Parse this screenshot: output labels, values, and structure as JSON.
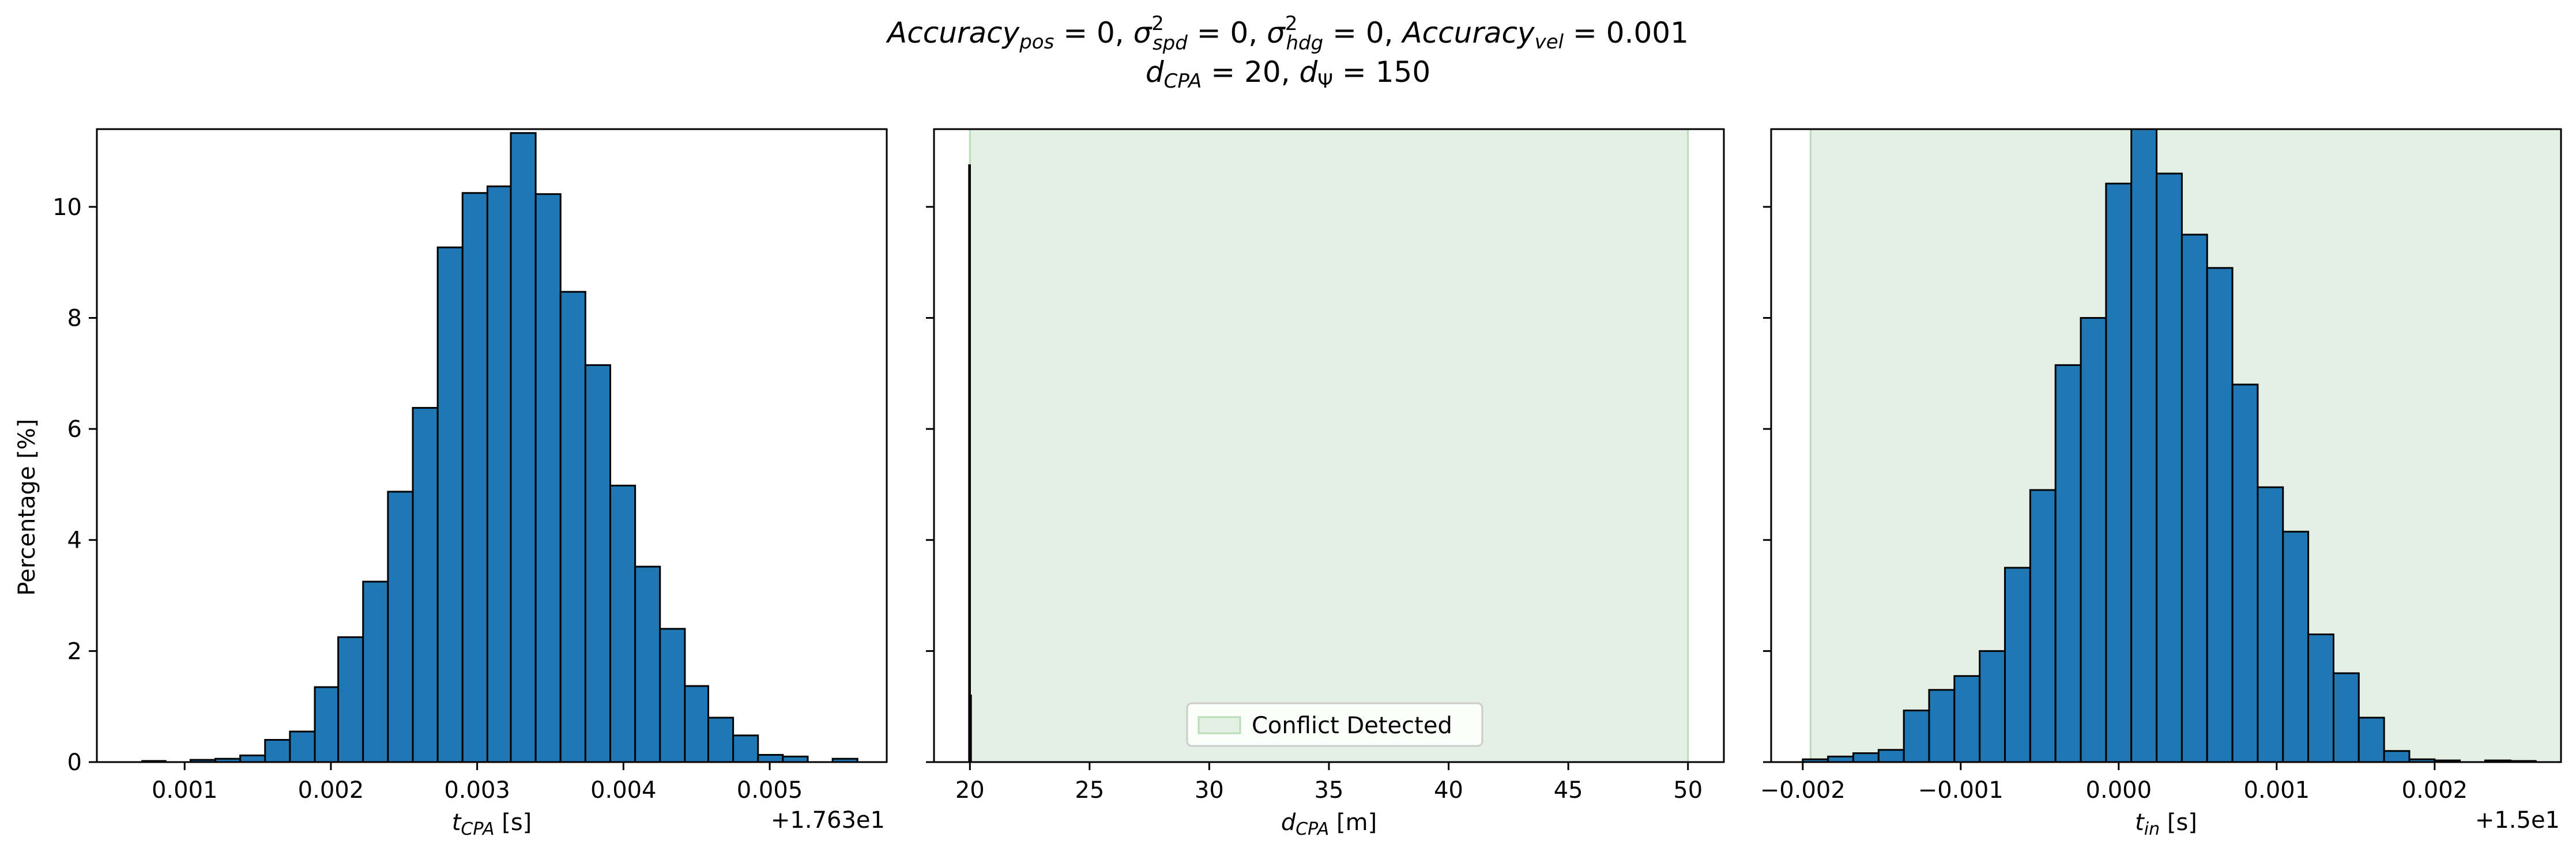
{
  "figure": {
    "title_line1": "Accuracy_pos = 0, σ²_spd = 0, σ²_hdg = 0, Accuracy_vel = 0.001",
    "title_line2": "d_CPA = 20, d_Ψ = 150"
  },
  "colors": {
    "bar_fill": "#1f77b4",
    "bar_edge": "#000000",
    "conflict_fill": "#e5f0e5",
    "conflict_edge": "#b9dcb9"
  },
  "chart_data": [
    {
      "type": "bar",
      "name": "tcpa",
      "xlabel": "t_CPA [s]",
      "ylabel": "Percentage [%]",
      "offset_text": "+1.763e1",
      "xlim": [
        0.0004,
        0.0058
      ],
      "ylim": [
        0,
        11.4
      ],
      "x_ticks": [
        0.001,
        0.002,
        0.003,
        0.004,
        0.005
      ],
      "x_tick_labels": [
        "0.001",
        "0.002",
        "0.003",
        "0.004",
        "0.005"
      ],
      "y_ticks": [
        0,
        2,
        4,
        6,
        8,
        10
      ],
      "y_tick_labels": [
        "0",
        "2",
        "4",
        "6",
        "8",
        "10"
      ],
      "bin_edges": [
        0.00071,
        0.00087,
        0.00104,
        0.00121,
        0.00138,
        0.00155,
        0.00172,
        0.00189,
        0.00205,
        0.00222,
        0.00239,
        0.00256,
        0.00273,
        0.0029,
        0.00307,
        0.00323,
        0.0034,
        0.00357,
        0.00374,
        0.00391,
        0.00408,
        0.00425,
        0.00442,
        0.00458,
        0.00475,
        0.00492,
        0.00509,
        0.00526,
        0.00543,
        0.0056
      ],
      "values": [
        0.02,
        0.0,
        0.04,
        0.06,
        0.12,
        0.4,
        0.55,
        1.35,
        2.25,
        3.25,
        4.87,
        6.38,
        9.27,
        10.25,
        10.37,
        11.33,
        10.23,
        8.47,
        7.15,
        4.98,
        3.52,
        2.4,
        1.37,
        0.8,
        0.48,
        0.13,
        0.1,
        0.0,
        0.06
      ]
    },
    {
      "type": "bar",
      "name": "dcpa",
      "xlabel": "d_CPA [m]",
      "xlim": [
        18.5,
        51.5
      ],
      "ylim": [
        0,
        11.4
      ],
      "x_ticks": [
        20,
        25,
        30,
        35,
        40,
        45,
        50
      ],
      "x_tick_labels": [
        "20",
        "25",
        "30",
        "35",
        "40",
        "45",
        "50"
      ],
      "y_ticks": [
        0,
        2,
        4,
        6,
        8,
        10
      ],
      "region": {
        "x0": 20,
        "x1": 50
      },
      "legend": {
        "label": "Conflict Detected",
        "placement": "lower center"
      },
      "bin_edges": [
        19.965,
        20.005,
        20.045
      ],
      "values": [
        10.75,
        1.2
      ]
    },
    {
      "type": "bar",
      "name": "tin",
      "xlabel": "t_in [s]",
      "offset_text": "+1.5e1",
      "xlim": [
        -0.0022,
        0.0028
      ],
      "ylim": [
        0,
        11.4
      ],
      "x_ticks": [
        -0.002,
        -0.001,
        0.0,
        0.001,
        0.002
      ],
      "x_tick_labels": [
        "−0.002",
        "−0.001",
        "0.000",
        "0.001",
        "0.002"
      ],
      "y_ticks": [
        0,
        2,
        4,
        6,
        8,
        10
      ],
      "region": {
        "x0": -0.00195,
        "x1": 0.0028
      },
      "bin_edges": [
        -0.002,
        -0.00184,
        -0.00168,
        -0.00152,
        -0.00136,
        -0.0012,
        -0.00104,
        -0.00088,
        -0.00072,
        -0.00056,
        -0.0004,
        -0.00024,
        -8e-05,
        8e-05,
        0.00024,
        0.0004,
        0.00056,
        0.00072,
        0.00088,
        0.00104,
        0.0012,
        0.00136,
        0.00152,
        0.00168,
        0.00184,
        0.002,
        0.00216,
        0.00232,
        0.00248,
        0.00264
      ],
      "values": [
        0.05,
        0.1,
        0.16,
        0.22,
        0.93,
        1.3,
        1.55,
        2.0,
        3.5,
        4.9,
        7.15,
        8.0,
        10.42,
        11.4,
        10.6,
        9.5,
        8.9,
        6.8,
        4.95,
        4.15,
        2.3,
        1.6,
        0.8,
        0.2,
        0.05,
        0.03,
        0.0,
        0.03,
        0.02
      ]
    }
  ]
}
